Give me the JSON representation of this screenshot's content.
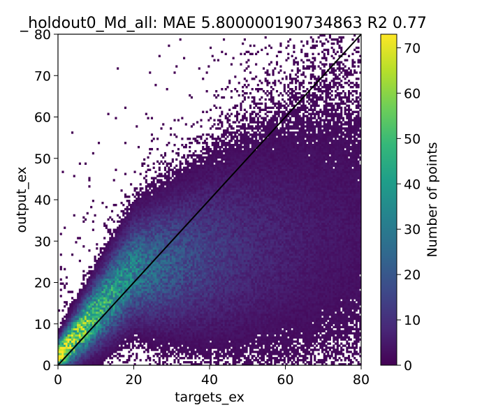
{
  "chart_data": {
    "type": "heatmap",
    "title": "_holdout0_Md_all: MAE 5.800000190734863 R2 0.77",
    "xlabel": "targets_ex",
    "ylabel": "output_ex",
    "xlim": [
      0,
      80
    ],
    "ylim": [
      0,
      80
    ],
    "xticks": [
      "0",
      "20",
      "40",
      "60",
      "80"
    ],
    "yticks": [
      "0",
      "10",
      "20",
      "30",
      "40",
      "50",
      "60",
      "70",
      "80"
    ],
    "grid": false,
    "reference_line": {
      "label": "",
      "x": [
        0,
        80
      ],
      "y": [
        0,
        80
      ],
      "color": "#000000"
    },
    "colorbar": {
      "label": "Number of points",
      "range": [
        0,
        73
      ],
      "ticks": [
        "0",
        "10",
        "20",
        "30",
        "40",
        "50",
        "60",
        "70"
      ],
      "colormap": "viridis",
      "zero_color": "#ffffff"
    },
    "density_model": {
      "description_note": "",
      "x_max": 80,
      "y_max": 80,
      "peak_count": 73,
      "peak_xy": [
        2,
        3
      ]
    }
  },
  "colors": {
    "viridis": [
      "#440154",
      "#482878",
      "#3e4989",
      "#31688e",
      "#26828e",
      "#1f9e89",
      "#35b779",
      "#6ece58",
      "#b5de2b",
      "#fde725"
    ]
  }
}
